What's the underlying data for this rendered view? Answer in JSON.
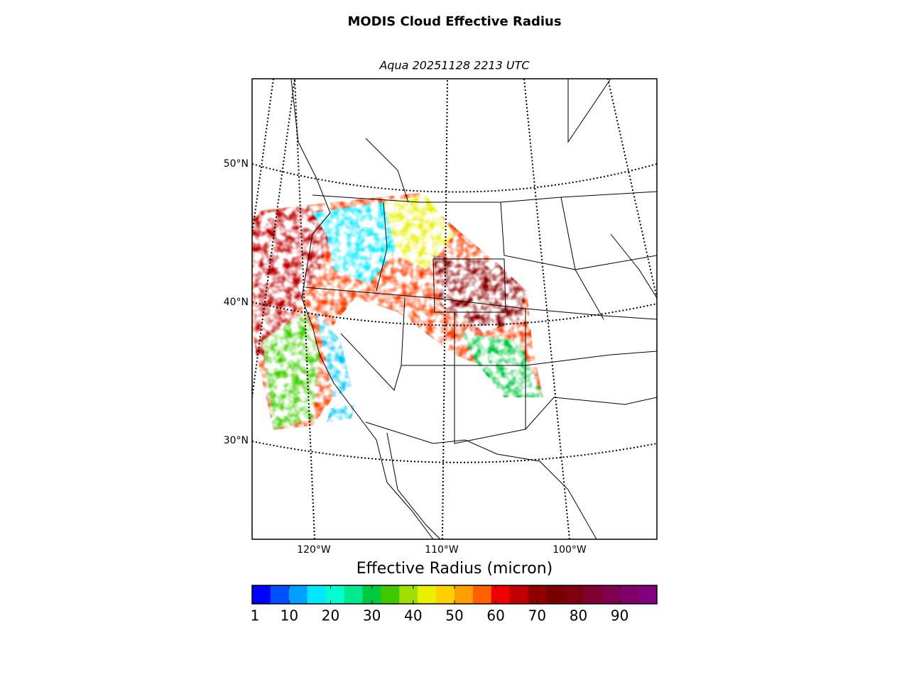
{
  "map": {
    "title": "MODIS Cloud Effective Radius",
    "subtitle": "Aqua 20251128 2213 UTC",
    "lat_labels": [
      "50°N",
      "40°N",
      "30°N"
    ],
    "lon_labels": [
      "120°W",
      "110°W",
      "100°W"
    ],
    "colorbar": {
      "label": "Effective Radius (micron)",
      "lim": [
        1,
        99
      ],
      "ticks": [
        1,
        10,
        20,
        30,
        40,
        50,
        60,
        70,
        80,
        90
      ],
      "colors": [
        "#0000ff",
        "#0050ff",
        "#00a0ff",
        "#00e8ff",
        "#00ffd0",
        "#00e890",
        "#00c840",
        "#40c800",
        "#a0e000",
        "#e8f000",
        "#ffd000",
        "#ffa000",
        "#ff6000",
        "#f00000",
        "#c00000",
        "#900000",
        "#780000",
        "#800010",
        "#800030",
        "#800050",
        "#800068",
        "#800080"
      ]
    }
  }
}
